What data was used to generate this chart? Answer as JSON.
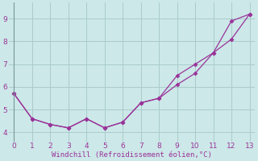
{
  "xlabel": "Windchill (Refroidissement éolien,°C)",
  "x": [
    0,
    1,
    2,
    3,
    4,
    5,
    6,
    7,
    8,
    9,
    10,
    11,
    12,
    13
  ],
  "line1": [
    5.7,
    4.6,
    4.35,
    4.2,
    4.6,
    4.2,
    4.45,
    5.3,
    5.5,
    6.1,
    6.6,
    7.5,
    8.1,
    9.2
  ],
  "line2": [
    5.7,
    4.6,
    4.35,
    4.2,
    4.6,
    4.2,
    4.45,
    5.3,
    5.5,
    6.5,
    7.0,
    7.5,
    8.9,
    9.2
  ],
  "line_color": "#993399",
  "bg_color": "#cce8e8",
  "grid_color": "#aacccc",
  "xlim": [
    -0.3,
    13.3
  ],
  "ylim": [
    3.6,
    9.7
  ],
  "yticks": [
    4,
    5,
    6,
    7,
    8,
    9
  ],
  "xticks": [
    0,
    1,
    2,
    3,
    4,
    5,
    6,
    7,
    8,
    9,
    10,
    11,
    12,
    13
  ]
}
